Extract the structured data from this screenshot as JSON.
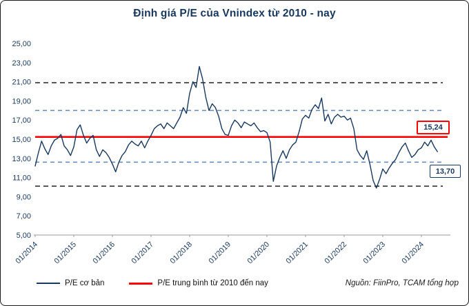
{
  "title": "Định giá P/E của Vnindex từ 2010 - nay",
  "legend": {
    "series1": "P/E cơ bản",
    "series2": "P/E trung bình từ 2010 đến nay"
  },
  "source": "Nguồn: FiinPro, TCAM tổng hợp",
  "annotations": {
    "mean_label": "15,24",
    "last_label": "13,70"
  },
  "colors": {
    "navy": "#17375E",
    "red": "#FF0000",
    "blue": "#6C8EBF",
    "black": "#404040",
    "axis": "#999999"
  },
  "chart_data": {
    "type": "line",
    "title": "Định giá P/E của Vnindex từ 2010 - nay",
    "ylim": [
      5,
      25
    ],
    "grid": false,
    "legend_position": "bottom",
    "y_ticks": [
      {
        "value": 25,
        "label": "25,00"
      },
      {
        "value": 23,
        "label": "23,00"
      },
      {
        "value": 21,
        "label": "21,00"
      },
      {
        "value": 19,
        "label": "19,00"
      },
      {
        "value": 17,
        "label": "17,00"
      },
      {
        "value": 15,
        "label": "15,00"
      },
      {
        "value": 13,
        "label": "13,00"
      },
      {
        "value": 11,
        "label": "11,00"
      },
      {
        "value": 9,
        "label": "9,00"
      },
      {
        "value": 7,
        "label": "7,00"
      },
      {
        "value": 5,
        "label": "5,00"
      }
    ],
    "x_ticks": [
      "01/2014",
      "01/2015",
      "01/2016",
      "01/2017",
      "01/2018",
      "01/2019",
      "01/2020",
      "01/2021",
      "01/2022",
      "01/2023",
      "01/2024"
    ],
    "x_unit": "month",
    "x_start": "01/2014",
    "series": [
      {
        "name": "P/E cơ bản",
        "color": "navy",
        "values": [
          12.2,
          13.6,
          14.8,
          14.0,
          13.4,
          14.3,
          14.9,
          15.1,
          15.5,
          14.3,
          13.9,
          13.3,
          14.2,
          16.0,
          16.5,
          15.4,
          14.6,
          15.1,
          15.4,
          13.9,
          13.2,
          13.9,
          13.6,
          13.1,
          12.4,
          11.6,
          12.6,
          13.3,
          13.7,
          14.4,
          14.8,
          14.5,
          14.3,
          14.8,
          14.1,
          14.8,
          15.4,
          16.1,
          16.4,
          16.6,
          16.1,
          16.7,
          16.4,
          16.1,
          16.7,
          17.3,
          18.3,
          17.7,
          19.8,
          21.0,
          20.4,
          22.6,
          21.3,
          19.4,
          18.0,
          18.7,
          18.3,
          17.4,
          16.1,
          15.5,
          15.4,
          16.4,
          17.0,
          16.7,
          16.2,
          16.8,
          16.6,
          16.4,
          16.7,
          16.2,
          15.8,
          15.9,
          15.7,
          14.7,
          10.6,
          12.2,
          13.1,
          13.8,
          13.0,
          13.9,
          14.4,
          14.7,
          15.8,
          17.1,
          17.5,
          17.2,
          18.1,
          18.6,
          18.2,
          19.3,
          16.9,
          17.6,
          16.6,
          17.3,
          17.6,
          17.3,
          17.4,
          17.0,
          17.2,
          16.1,
          13.9,
          13.3,
          12.9,
          13.8,
          12.4,
          10.7,
          9.9,
          10.8,
          11.9,
          11.4,
          12.0,
          12.5,
          12.9,
          13.6,
          14.2,
          14.6,
          13.8,
          13.1,
          13.4,
          13.9,
          14.1,
          14.7,
          14.3,
          14.9,
          14.2,
          13.7
        ]
      }
    ],
    "reference_lines": [
      {
        "name": "upper-band-outer",
        "value": 20.9,
        "color": "black",
        "style": "dashed"
      },
      {
        "name": "upper-band-inner",
        "value": 18.0,
        "color": "blue",
        "style": "dashed"
      },
      {
        "name": "P/E trung bình từ 2010 đến nay",
        "value": 15.24,
        "color": "red",
        "style": "solid",
        "label": "15,24"
      },
      {
        "name": "lower-band-inner",
        "value": 12.6,
        "color": "blue",
        "style": "dashed"
      },
      {
        "name": "lower-band-outer",
        "value": 10.1,
        "color": "black",
        "style": "dashed"
      }
    ],
    "latest_value": 13.7
  }
}
